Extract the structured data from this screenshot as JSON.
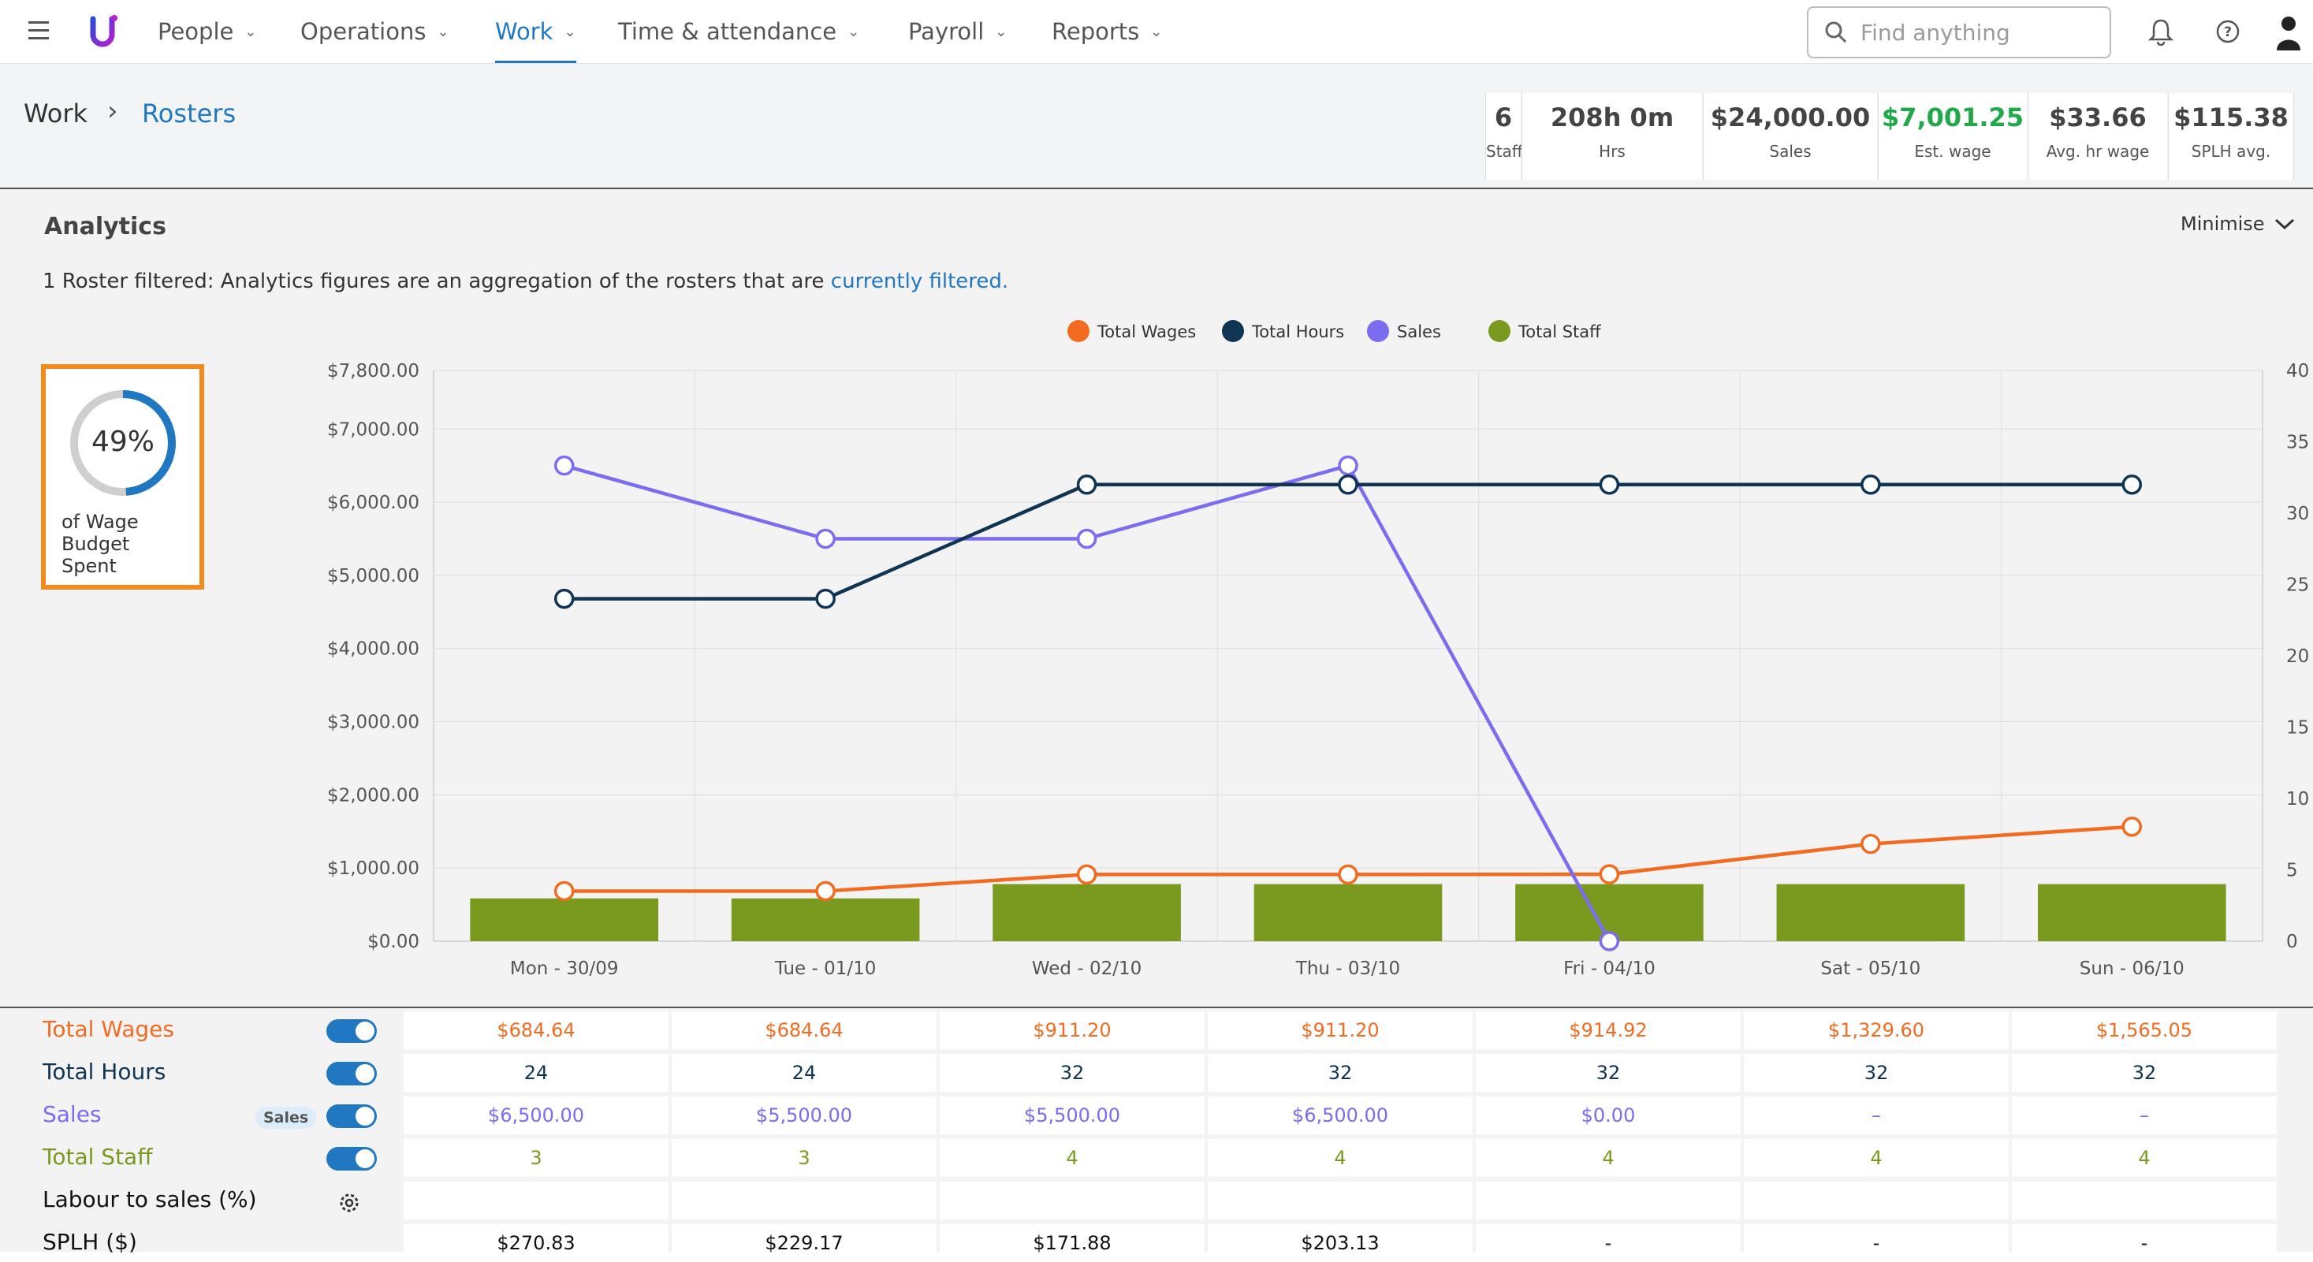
{
  "nav": {
    "logo_letter": "U",
    "items": [
      {
        "label": "People"
      },
      {
        "label": "Operations"
      },
      {
        "label": "Work"
      },
      {
        "label": "Time & attendance"
      },
      {
        "label": "Payroll"
      },
      {
        "label": "Reports"
      }
    ],
    "active": "Work",
    "search_placeholder": "Find anything",
    "icons": [
      "menu-icon",
      "search-icon",
      "bell-icon",
      "help-icon",
      "user-icon"
    ]
  },
  "breadcrumb": {
    "parent": "Work",
    "current": "Rosters"
  },
  "stats": [
    {
      "value": "6",
      "label": "Staff"
    },
    {
      "value": "208h 0m",
      "label": "Hrs"
    },
    {
      "value": "$24,000.00",
      "label": "Sales"
    },
    {
      "value": "$7,001.25",
      "label": "Est. wage"
    },
    {
      "value": "$33.66",
      "label": "Avg. hr wage"
    },
    {
      "value": "$115.38",
      "label": "SPLH avg."
    }
  ],
  "analytics": {
    "title": "Analytics",
    "minimise_label": "Minimise",
    "filter_note": "1 Roster filtered: Analytics figures are an aggregation of the rosters that are",
    "filter_link": "currently filtered.",
    "budget_percent": "49%",
    "budget_fraction": 0.49,
    "budget_caption_lines": [
      "of Wage",
      "Budget",
      "Spent"
    ]
  },
  "colors": {
    "wages": "#f26b21",
    "hours": "#0f3553",
    "sales": "#7b6cf0",
    "staff": "#7a9a1f",
    "accent": "#1f78c1",
    "est_wage": "#20a84a",
    "budget_border": "#f18a1f"
  },
  "chart_data": {
    "type": "bar",
    "categories": [
      "Mon - 30/09",
      "Tue - 01/10",
      "Wed - 02/10",
      "Thu - 03/10",
      "Fri - 04/10",
      "Sat - 05/10",
      "Sun - 06/10"
    ],
    "legend": [
      "Total Wages",
      "Total Hours",
      "Sales",
      "Total Staff"
    ],
    "legend_position": "top-center",
    "y_left": {
      "ticks": [
        "$0.00",
        "$1,000.00",
        "$2,000.00",
        "$3,000.00",
        "$4,000.00",
        "$5,000.00",
        "$6,000.00",
        "$7,000.00",
        "$7,800.00"
      ],
      "range": [
        0,
        7800
      ]
    },
    "y_right": {
      "ticks": [
        "0",
        "5",
        "10",
        "15",
        "20",
        "25",
        "30",
        "35",
        "40"
      ],
      "range": [
        0,
        40
      ]
    },
    "grid": true,
    "series": [
      {
        "name": "Total Wages",
        "type": "line",
        "axis": "left",
        "values": [
          684.64,
          684.64,
          911.2,
          911.2,
          914.92,
          1329.6,
          1565.05
        ]
      },
      {
        "name": "Total Hours",
        "type": "line",
        "axis": "right",
        "values": [
          24,
          24,
          32,
          32,
          32,
          32,
          32
        ]
      },
      {
        "name": "Sales",
        "type": "line",
        "axis": "left",
        "values": [
          6500,
          5500,
          5500,
          6500,
          0,
          null,
          null
        ]
      },
      {
        "name": "Total Staff",
        "type": "bar",
        "axis": "right",
        "values": [
          3,
          3,
          4,
          4,
          4,
          4,
          4
        ]
      }
    ]
  },
  "table": {
    "rows": [
      {
        "label": "Total Wages",
        "toggle": true,
        "values": [
          "$684.64",
          "$684.64",
          "$911.20",
          "$911.20",
          "$914.92",
          "$1,329.60",
          "$1,565.05"
        ]
      },
      {
        "label": "Total Hours",
        "toggle": true,
        "values": [
          "24",
          "24",
          "32",
          "32",
          "32",
          "32",
          "32"
        ]
      },
      {
        "label": "Sales",
        "toggle": true,
        "badge": "Sales",
        "values": [
          "$6,500.00",
          "$5,500.00",
          "$5,500.00",
          "$6,500.00",
          "$0.00",
          "–",
          "–"
        ]
      },
      {
        "label": "Total Staff",
        "toggle": true,
        "values": [
          "3",
          "3",
          "4",
          "4",
          "4",
          "4",
          "4"
        ]
      },
      {
        "label": "Labour to sales (%)",
        "values": [
          "",
          "",
          "",
          "",
          "",
          "",
          ""
        ]
      },
      {
        "label": "SPLH ($)",
        "values": [
          "$270.83",
          "$229.17",
          "$171.88",
          "$203.13",
          "-",
          "-",
          "-"
        ]
      }
    ]
  }
}
